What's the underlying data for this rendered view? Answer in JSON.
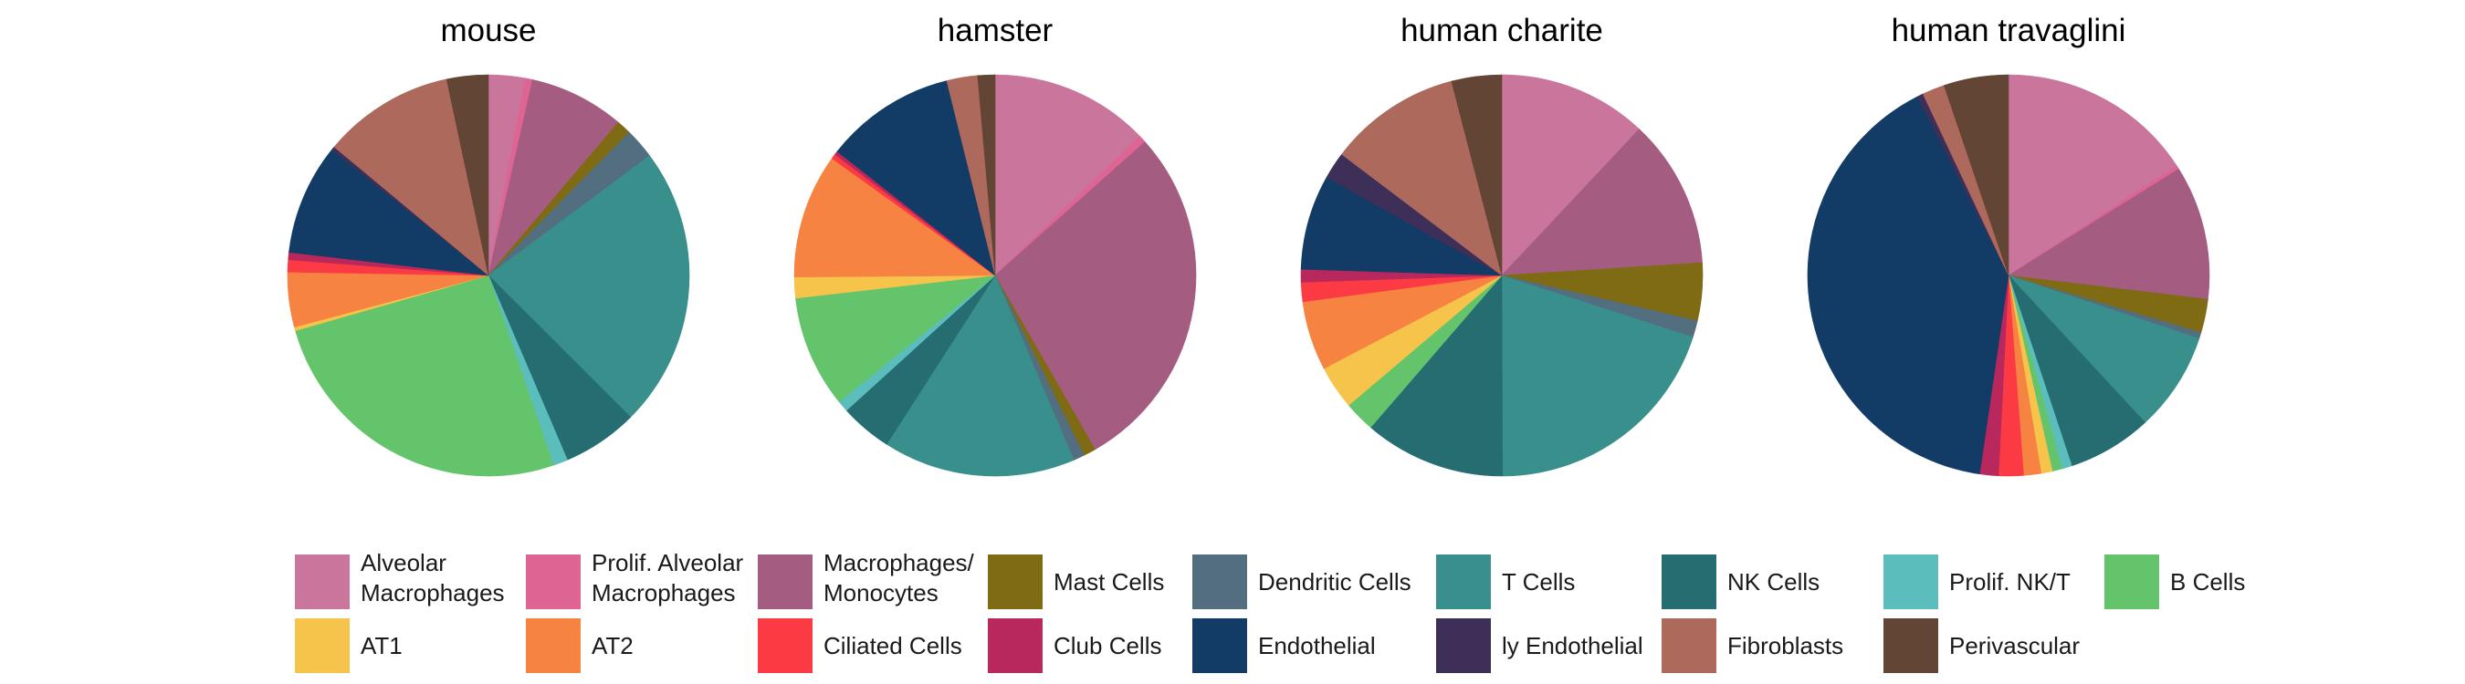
{
  "chart_data": {
    "type": "pie",
    "categories": [
      "Alveolar Macrophages",
      "Prolif. Alveolar Macrophages",
      "Macrophages/ Monocytes",
      "Mast Cells",
      "Dendritic Cells",
      "T Cells",
      "NK Cells",
      "Prolif. NK/T",
      "B Cells",
      "AT1",
      "AT2",
      "Ciliated Cells",
      "Club Cells",
      "Endothelial",
      "ly Endothelial",
      "Fibroblasts",
      "Perivascular"
    ],
    "colors": [
      "#ca759c",
      "#de6494",
      "#a45d80",
      "#7e6b14",
      "#536e7e",
      "#388f8c",
      "#266d72",
      "#5cbdbd",
      "#63c46c",
      "#f6c44a",
      "#f68342",
      "#fc3a44",
      "#b8285c",
      "#123c66",
      "#3e2f58",
      "#ad695c",
      "#624535"
    ],
    "pies": [
      {
        "title": "mouse",
        "values": [
          3.0,
          0.6,
          7.8,
          1.2,
          2.5,
          23.1,
          6.2,
          1.2,
          26.3,
          0.3,
          4.5,
          1.0,
          0.6,
          9.1,
          0.3,
          10.8,
          3.4
        ]
      },
      {
        "title": "hamster",
        "values": [
          12.9,
          0.6,
          28.5,
          1.0,
          0.9,
          15.6,
          4.2,
          0.9,
          9.1,
          1.7,
          10.1,
          0.4,
          0.3,
          10.6,
          0.0,
          2.5,
          1.4
        ]
      },
      {
        "title": "human charite",
        "values": [
          11.6,
          0.0,
          11.6,
          4.5,
          1.3,
          19.3,
          11.0,
          0.0,
          2.4,
          3.4,
          5.4,
          1.5,
          1.0,
          7.4,
          2.1,
          10.3,
          3.9
        ]
      },
      {
        "title": "human travaglini",
        "values": [
          15.8,
          0.3,
          10.8,
          2.7,
          0.5,
          8.0,
          6.8,
          0.8,
          0.8,
          0.9,
          1.4,
          2.0,
          1.5,
          40.2,
          0.5,
          1.8,
          5.2
        ]
      }
    ],
    "legend": {
      "position": "bottom",
      "rows": [
        [
          "Alveolar Macrophages",
          "Prolif. Alveolar Macrophages",
          "Macrophages/ Monocytes",
          "Mast Cells",
          "Dendritic Cells",
          "T Cells",
          "NK Cells",
          "Prolif. NK/T",
          "B Cells"
        ],
        [
          "AT1",
          "AT2",
          "Ciliated Cells",
          "Club Cells",
          "Endothelial",
          "ly Endothelial",
          "Fibroblasts",
          "Perivascular"
        ]
      ],
      "row1_labels": [
        [
          "Alveolar",
          "Macrophages"
        ],
        [
          "Prolif. Alveolar",
          "Macrophages"
        ],
        [
          "Macrophages/",
          "Monocytes"
        ],
        [
          "Mast Cells"
        ],
        [
          "Dendritic Cells"
        ],
        [
          "T Cells"
        ],
        [
          "NK Cells"
        ],
        [
          "Prolif. NK/T"
        ],
        [
          "B Cells"
        ]
      ]
    }
  }
}
